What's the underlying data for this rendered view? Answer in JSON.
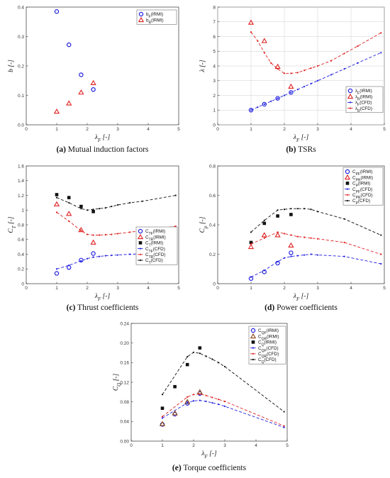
{
  "colors": {
    "blue": "#2020e0",
    "red": "#e02020",
    "black": "#111111",
    "brown": "#8b4513"
  },
  "chart_data": [
    {
      "id": "a",
      "type": "scatter",
      "caption_letter": "(a)",
      "caption_text": "Mutual induction factors",
      "ylabel": "b [-]",
      "xlabel": "λF [-]",
      "xlim": [
        0,
        5
      ],
      "ylim": [
        0,
        0.4
      ],
      "xticks": [
        0,
        1,
        2,
        3,
        4,
        5
      ],
      "yticks": [
        0,
        0.1,
        0.2,
        0.3,
        0.4
      ],
      "ytick_labels": [
        "0.0",
        "0.1",
        "0.2",
        "0.3",
        "0.4"
      ],
      "legend_position": "top-right",
      "grid": false,
      "series": [
        {
          "name": "bF(IRMI)",
          "marker": "circle",
          "color": "#2020e0",
          "x": [
            1.0,
            1.4,
            1.8,
            2.2
          ],
          "y": [
            0.385,
            0.272,
            0.17,
            0.12
          ]
        },
        {
          "name": "bR(IRMI)",
          "marker": "triangle",
          "color": "#e02020",
          "x": [
            1.0,
            1.4,
            1.8,
            2.2
          ],
          "y": [
            0.045,
            0.073,
            0.11,
            0.142
          ]
        }
      ]
    },
    {
      "id": "b",
      "type": "line",
      "caption_letter": "(b)",
      "caption_text": "TSRs",
      "ylabel": "λ [-]",
      "xlabel": "λF [-]",
      "xlim": [
        0,
        5
      ],
      "ylim": [
        0,
        8
      ],
      "xticks": [
        0,
        1,
        2,
        3,
        4,
        5
      ],
      "yticks": [
        0,
        1,
        2,
        3,
        4,
        5,
        6,
        7,
        8
      ],
      "ytick_labels": [
        "0",
        "1",
        "2",
        "3",
        "4",
        "5",
        "6",
        "7",
        "8"
      ],
      "legend_position": "bottom-right",
      "grid": true,
      "series": [
        {
          "name": "λF(IRMI)",
          "marker": "circle",
          "color": "#2020e0",
          "x": [
            1.0,
            1.4,
            1.8,
            2.2
          ],
          "y": [
            1.0,
            1.4,
            1.8,
            2.2
          ]
        },
        {
          "name": "λR(IRMI)",
          "marker": "triangle",
          "color": "#e02020",
          "x": [
            1.0,
            1.4,
            1.8,
            2.2
          ],
          "y": [
            6.95,
            5.7,
            3.95,
            2.6
          ]
        },
        {
          "name": "λF(CFD)",
          "line": "dashed",
          "dots": true,
          "color": "#2020e0",
          "x": [
            1.0,
            1.2,
            1.4,
            1.6,
            1.8,
            2.0,
            2.2,
            2.4,
            2.6,
            2.8,
            3.0,
            3.4,
            3.8,
            4.2,
            4.9
          ],
          "y": [
            1.0,
            1.2,
            1.4,
            1.6,
            1.8,
            2.0,
            2.2,
            2.4,
            2.6,
            2.8,
            3.0,
            3.4,
            3.8,
            4.2,
            4.9
          ]
        },
        {
          "name": "λR(CFD)",
          "line": "dashed",
          "dots": true,
          "color": "#e02020",
          "x": [
            1.0,
            1.2,
            1.4,
            1.6,
            1.8,
            2.0,
            2.2,
            2.4,
            2.6,
            2.8,
            3.0,
            3.4,
            3.8,
            4.2,
            4.9
          ],
          "y": [
            6.3,
            5.7,
            4.9,
            4.2,
            3.8,
            3.5,
            3.5,
            3.55,
            3.7,
            3.85,
            4.0,
            4.35,
            4.85,
            5.35,
            6.25
          ]
        }
      ]
    },
    {
      "id": "c",
      "type": "line",
      "caption_letter": "(c)",
      "caption_text": "Thrust coefficients",
      "ylabel": "CT [-]",
      "xlabel": "λF [-]",
      "xlim": [
        0,
        5
      ],
      "ylim": [
        0,
        1.6
      ],
      "xticks": [
        0,
        1,
        2,
        3,
        4,
        5
      ],
      "yticks": [
        0,
        0.2,
        0.4,
        0.6,
        0.8,
        1.0,
        1.2,
        1.4,
        1.6
      ],
      "ytick_labels": [
        "0",
        "0.2",
        "0.4",
        "0.6",
        "0.8",
        "1",
        "1.2",
        "1.4",
        "1.6"
      ],
      "legend_position": "bottom-right",
      "grid": false,
      "series": [
        {
          "name": "CTF(IRMI)",
          "marker": "circle",
          "color": "#2020e0",
          "x": [
            1.0,
            1.4,
            1.8,
            2.2
          ],
          "y": [
            0.14,
            0.22,
            0.32,
            0.41
          ]
        },
        {
          "name": "CTR(IRMI)",
          "marker": "triangle",
          "color": "#e02020",
          "x": [
            1.0,
            1.4,
            1.8,
            2.2
          ],
          "y": [
            1.08,
            0.95,
            0.73,
            0.56
          ]
        },
        {
          "name": "CT(IRMI)",
          "marker": "square",
          "color": "#111111",
          "x": [
            1.0,
            1.4,
            1.8,
            2.2
          ],
          "y": [
            1.21,
            1.17,
            1.05,
            0.98
          ]
        },
        {
          "name": "CTF(CFD)",
          "line": "dashed",
          "dots": true,
          "color": "#2020e0",
          "x": [
            1.0,
            1.4,
            1.8,
            2.0,
            2.2,
            2.4,
            2.6,
            2.8,
            3.0,
            3.4,
            3.8,
            4.9
          ],
          "y": [
            0.2,
            0.25,
            0.31,
            0.34,
            0.36,
            0.37,
            0.38,
            0.385,
            0.39,
            0.4,
            0.405,
            0.42
          ]
        },
        {
          "name": "CTR(CFD)",
          "line": "dashed",
          "dots": true,
          "color": "#e02020",
          "x": [
            1.0,
            1.4,
            1.8,
            2.0,
            2.2,
            2.4,
            2.6,
            2.8,
            3.0,
            3.4,
            3.8,
            4.9
          ],
          "y": [
            0.97,
            0.85,
            0.72,
            0.67,
            0.66,
            0.66,
            0.665,
            0.67,
            0.68,
            0.7,
            0.72,
            0.78
          ]
        },
        {
          "name": "CT(CFD)",
          "line": "dashed",
          "dots": true,
          "color": "#111111",
          "x": [
            1.0,
            1.4,
            1.8,
            2.0,
            2.2,
            2.4,
            2.6,
            2.8,
            3.0,
            3.4,
            3.8,
            4.9
          ],
          "y": [
            1.17,
            1.1,
            1.02,
            1.0,
            1.01,
            1.02,
            1.03,
            1.05,
            1.07,
            1.1,
            1.12,
            1.2
          ]
        }
      ]
    },
    {
      "id": "d",
      "type": "line",
      "caption_letter": "(d)",
      "caption_text": "Power coefficients",
      "ylabel": "Cp [-]",
      "xlabel": "λF [-]",
      "xlim": [
        0,
        5
      ],
      "ylim": [
        0,
        0.8
      ],
      "xticks": [
        0,
        1,
        2,
        3,
        4,
        5
      ],
      "yticks": [
        0,
        0.2,
        0.4,
        0.6,
        0.8
      ],
      "ytick_labels": [
        "0",
        "0.2",
        "0.4",
        "0.6",
        "0.8"
      ],
      "legend_position": "top-right",
      "grid": false,
      "series": [
        {
          "name": "CPF(IRMI)",
          "marker": "circle",
          "color": "#2020e0",
          "x": [
            1.0,
            1.4,
            1.8,
            2.2
          ],
          "y": [
            0.035,
            0.08,
            0.14,
            0.21
          ]
        },
        {
          "name": "CPR(IRMI)",
          "marker": "triangle",
          "color": "#e02020",
          "x": [
            1.0,
            1.4,
            1.8,
            2.2
          ],
          "y": [
            0.25,
            0.33,
            0.33,
            0.26
          ]
        },
        {
          "name": "CP(IRMI)",
          "marker": "square",
          "color": "#111111",
          "x": [
            1.0,
            1.4,
            1.8,
            2.2
          ],
          "y": [
            0.28,
            0.41,
            0.46,
            0.47
          ]
        },
        {
          "name": "CPF(CFD)",
          "line": "dashed",
          "dots": true,
          "color": "#2020e0",
          "x": [
            1.0,
            1.4,
            1.8,
            2.0,
            2.2,
            2.4,
            2.6,
            2.8,
            3.0,
            3.8,
            4.9
          ],
          "y": [
            0.045,
            0.09,
            0.15,
            0.175,
            0.185,
            0.19,
            0.195,
            0.2,
            0.195,
            0.185,
            0.135
          ]
        },
        {
          "name": "CPR(CFD)",
          "line": "dashed",
          "dots": true,
          "color": "#e02020",
          "x": [
            1.0,
            1.4,
            1.8,
            2.0,
            2.2,
            2.4,
            2.6,
            2.8,
            3.0,
            3.8,
            4.9
          ],
          "y": [
            0.27,
            0.31,
            0.35,
            0.34,
            0.33,
            0.32,
            0.315,
            0.31,
            0.305,
            0.28,
            0.2
          ]
        },
        {
          "name": "CP(CFD)",
          "line": "dashed",
          "dots": true,
          "color": "#111111",
          "x": [
            1.0,
            1.4,
            1.8,
            2.0,
            2.2,
            2.4,
            2.6,
            2.8,
            3.0,
            3.8,
            4.9
          ],
          "y": [
            0.35,
            0.43,
            0.5,
            0.505,
            0.51,
            0.51,
            0.51,
            0.505,
            0.49,
            0.44,
            0.33
          ]
        }
      ]
    },
    {
      "id": "e",
      "type": "line",
      "caption_letter": "(e)",
      "caption_text": "Torque coefficients",
      "ylabel": "CQ [-]",
      "xlabel": "λF [-]",
      "xlim": [
        0,
        5
      ],
      "ylim": [
        0,
        0.24
      ],
      "xticks": [
        0,
        1,
        2,
        3,
        4,
        5
      ],
      "yticks": [
        0,
        0.04,
        0.08,
        0.12,
        0.16,
        0.2,
        0.24
      ],
      "ytick_labels": [
        "0.00",
        "0.04",
        "0.08",
        "0.12",
        "0.16",
        "0.20",
        "0.24"
      ],
      "legend_position": "top-right",
      "grid": false,
      "series": [
        {
          "name": "CQF(IRMI)",
          "marker": "circle",
          "color": "#2020e0",
          "x": [
            1.0,
            1.4,
            1.8,
            2.2
          ],
          "y": [
            0.034,
            0.055,
            0.077,
            0.097
          ]
        },
        {
          "name": "CQR(IRMI)",
          "marker": "triangle",
          "color": "#8b4513",
          "x": [
            1.0,
            1.4,
            1.8,
            2.2
          ],
          "y": [
            0.035,
            0.057,
            0.08,
            0.1
          ]
        },
        {
          "name": "CQ(IRMI)",
          "marker": "square",
          "color": "#111111",
          "x": [
            1.0,
            1.4,
            1.8,
            2.2
          ],
          "y": [
            0.067,
            0.111,
            0.156,
            0.19
          ]
        },
        {
          "name": "CQF(CFD)",
          "line": "dashed",
          "dots": true,
          "color": "#2020e0",
          "x": [
            1.0,
            1.8,
            2.0,
            2.2,
            2.4,
            2.6,
            2.8,
            3.0,
            4.9
          ],
          "y": [
            0.047,
            0.078,
            0.082,
            0.083,
            0.081,
            0.078,
            0.075,
            0.071,
            0.028
          ]
        },
        {
          "name": "CQR(CFD)",
          "line": "dashed",
          "dots": true,
          "color": "#e02020",
          "x": [
            1.0,
            1.8,
            2.0,
            2.2,
            2.4,
            2.6,
            2.8,
            3.0,
            4.9
          ],
          "y": [
            0.05,
            0.09,
            0.095,
            0.096,
            0.093,
            0.089,
            0.085,
            0.081,
            0.031
          ]
        },
        {
          "name": "CQ(CFD)",
          "line": "dashed",
          "dots": true,
          "color": "#111111",
          "x": [
            1.0,
            1.8,
            2.0,
            2.2,
            2.4,
            2.6,
            2.8,
            3.0,
            4.9
          ],
          "y": [
            0.095,
            0.172,
            0.181,
            0.179,
            0.173,
            0.167,
            0.16,
            0.152,
            0.06
          ]
        }
      ]
    }
  ]
}
